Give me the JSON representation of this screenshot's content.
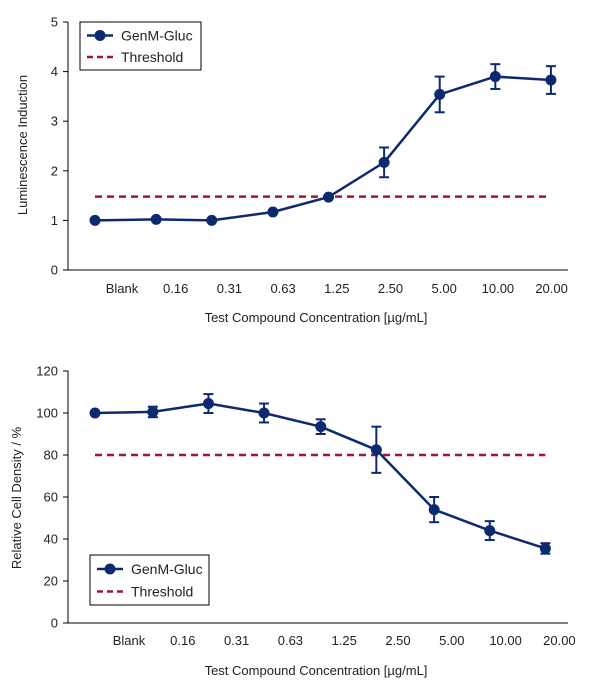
{
  "colors": {
    "series": "#0d2a6e",
    "threshold": "#a3143a",
    "axis": "#000000"
  },
  "chart_data": [
    {
      "type": "line",
      "categories": [
        "Blank",
        "0.16",
        "0.31",
        "0.63",
        "1.25",
        "2.50",
        "5.00",
        "10.00",
        "20.00"
      ],
      "xlabel": "Test Compound Concentration [µg/mL]",
      "ylabel": "Luminescence Induction",
      "ylim": [
        0,
        5
      ],
      "yticks": [
        0,
        1,
        2,
        3,
        4,
        5
      ],
      "legend": {
        "position": "top-left",
        "series_label": "GenM-Gluc",
        "threshold_label": "Threshold"
      },
      "series": [
        {
          "name": "GenM-Gluc",
          "x": [
            0.0,
            0.55,
            1.05,
            1.6,
            2.1,
            2.6,
            3.1,
            3.6,
            4.1
          ],
          "values": [
            1.0,
            1.02,
            1.0,
            1.17,
            1.47,
            2.17,
            3.54,
            3.9,
            3.83
          ],
          "errors": [
            0,
            0,
            0,
            0,
            0,
            0.3,
            0.36,
            0.25,
            0.28
          ]
        }
      ],
      "threshold": {
        "value": 1.48,
        "x_range": [
          0.0,
          4.1
        ]
      }
    },
    {
      "type": "line",
      "categories": [
        "Blank",
        "0.16",
        "0.31",
        "0.63",
        "1.25",
        "2.50",
        "5.00",
        "10.00",
        "20.00"
      ],
      "xlabel": "Test Compound Concentration [µg/mL]",
      "ylabel": "Relative Cell Density / %",
      "ylim": [
        0,
        120
      ],
      "yticks": [
        0,
        20,
        40,
        60,
        80,
        100,
        120
      ],
      "legend": {
        "position": "bottom-left",
        "series_label": "GenM-Gluc",
        "threshold_label": "Threshold"
      },
      "series": [
        {
          "name": "GenM-Gluc",
          "x": [
            0.0,
            0.52,
            1.02,
            1.52,
            2.03,
            2.53,
            3.05,
            3.55,
            4.05
          ],
          "values": [
            100,
            100.5,
            104.5,
            100,
            93.5,
            82.5,
            54,
            44,
            35.5
          ],
          "errors": [
            0,
            2.5,
            4.5,
            4.5,
            3.5,
            11,
            6,
            4.5,
            2.5
          ]
        }
      ],
      "threshold": {
        "value": 80,
        "x_range": [
          0.0,
          4.05
        ]
      }
    }
  ]
}
